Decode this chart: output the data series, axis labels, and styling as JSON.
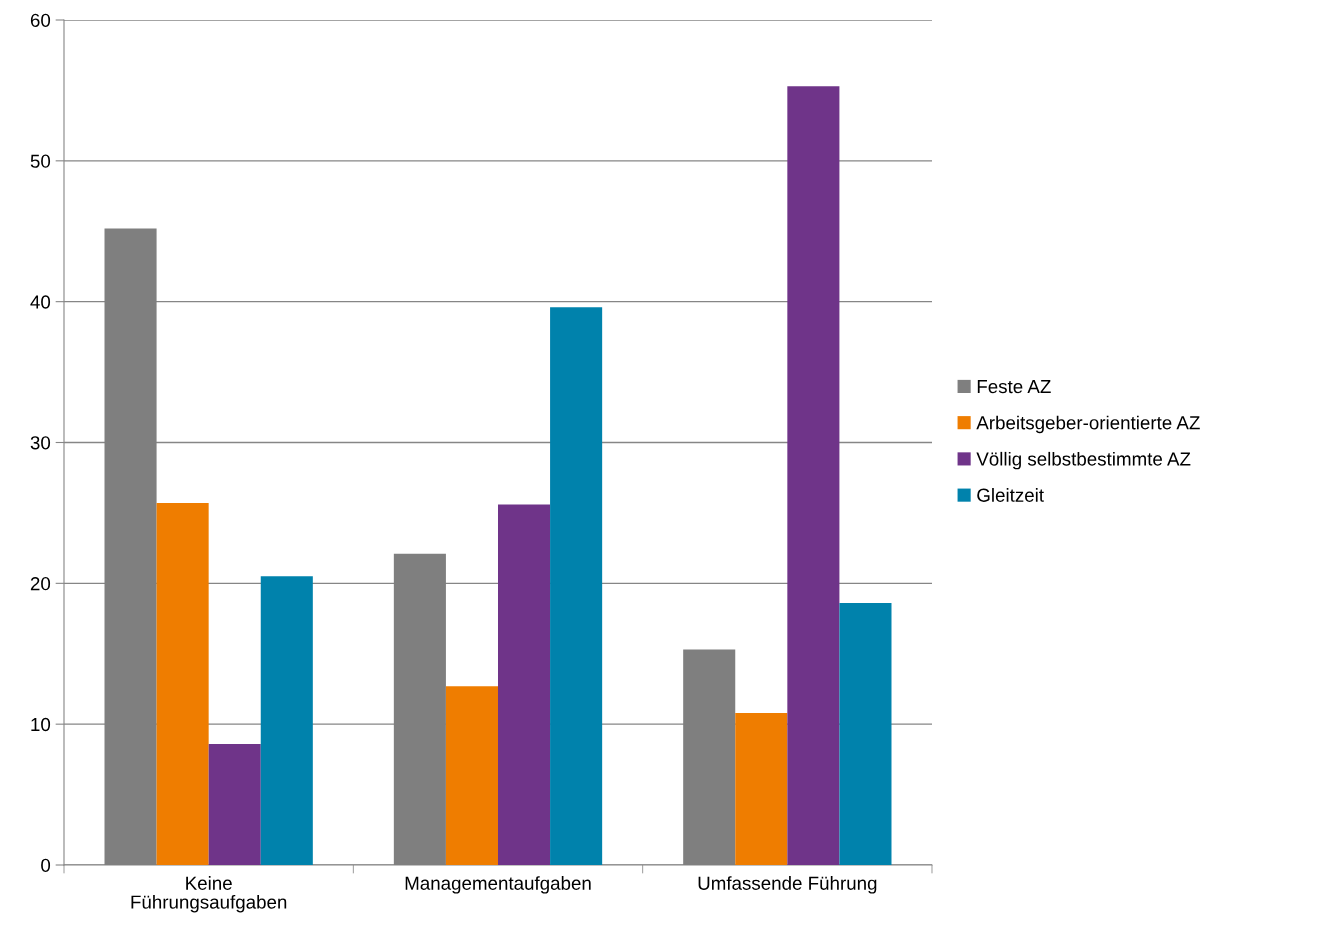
{
  "chart_data": {
    "type": "bar",
    "categories": [
      "Keine\nFührungsaufgaben",
      "Managementaufgaben",
      "Umfassende Führung"
    ],
    "series": [
      {
        "name": "Feste AZ",
        "color": "#7f7f7f",
        "values": [
          45.2,
          22.1,
          15.3
        ]
      },
      {
        "name": "Arbeitsgeber-orientierte AZ",
        "color": "#ef7d00",
        "values": [
          25.7,
          12.7,
          10.8
        ]
      },
      {
        "name": "Völlig selbstbestimmte AZ",
        "color": "#6f3489",
        "values": [
          8.6,
          25.6,
          55.3
        ]
      },
      {
        "name": "Gleitzeit",
        "color": "#0082ac",
        "values": [
          20.5,
          39.6,
          18.6
        ]
      }
    ],
    "ylim": [
      0,
      60
    ],
    "yticks": [
      0,
      10,
      20,
      30,
      40,
      50,
      60
    ],
    "grid": "y",
    "legend": "right"
  }
}
